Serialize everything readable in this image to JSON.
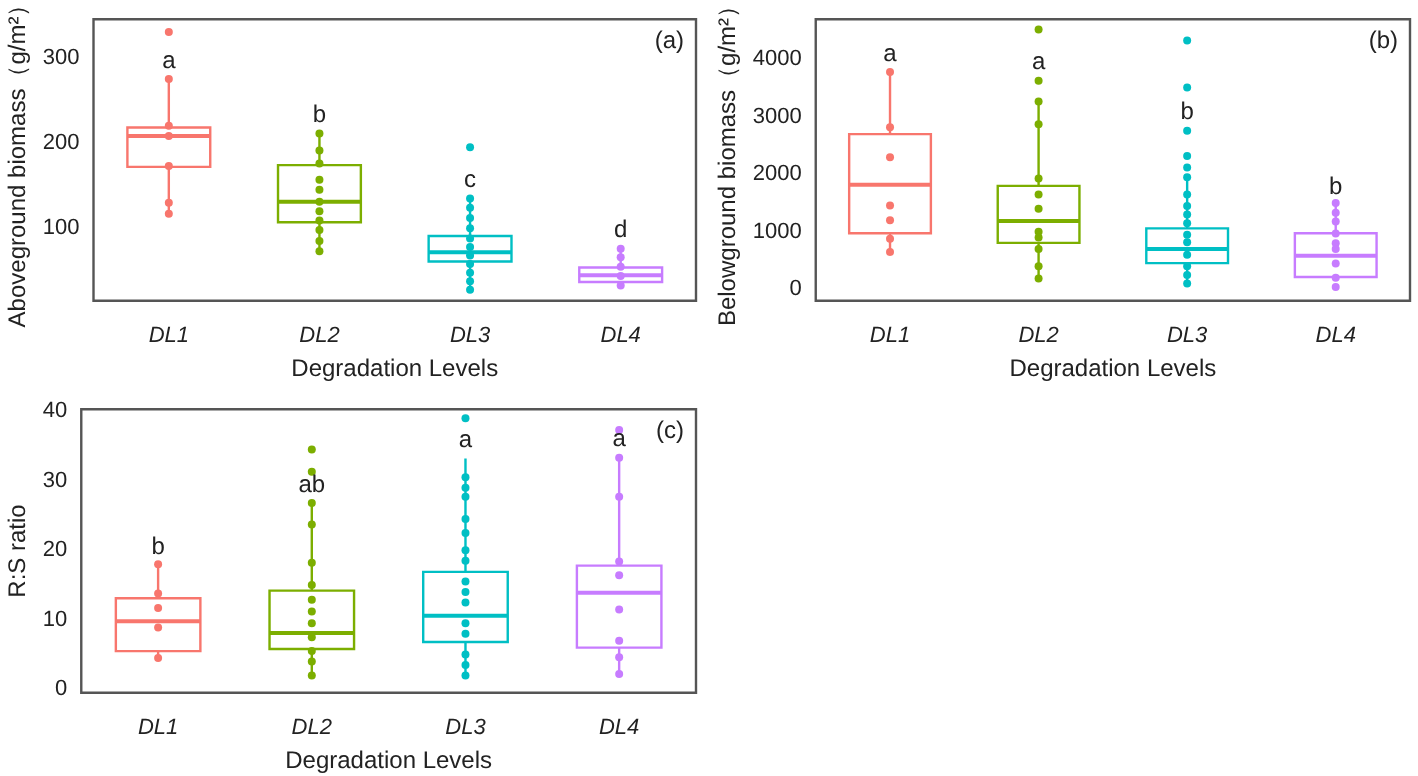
{
  "chart_data": [
    {
      "type": "box",
      "xlabel": "Degradation Levels",
      "ylabel": "Aboveground biomass（g/m²）",
      "categories": [
        "DL1",
        "DL2",
        "DL3",
        "DL4"
      ],
      "colors": [
        "#f8766d",
        "#7cae00",
        "#00bfc4",
        "#c77cff"
      ],
      "ylim": [
        15,
        345
      ],
      "yticks": [
        100,
        200,
        300
      ],
      "marker": "circle",
      "boxes": [
        {
          "low": 116,
          "q1": 172,
          "median": 208,
          "q3": 218,
          "high": 275
        },
        {
          "low": 73,
          "q1": 107,
          "median": 131,
          "q3": 174,
          "high": 211
        },
        {
          "low": 30,
          "q1": 61,
          "median": 72,
          "q3": 91,
          "high": 135
        },
        {
          "low": 37,
          "q1": 37,
          "median": 45,
          "q3": 54,
          "high": 76
        }
      ],
      "series": [
        {
          "type": "scatter",
          "color": "#f8766d",
          "x": [
            "DL1",
            "DL1",
            "DL1",
            "DL1",
            "DL1",
            "DL1",
            "DL1"
          ],
          "values": [
            330,
            275,
            220,
            208,
            173,
            130,
            117
          ]
        },
        {
          "type": "scatter",
          "color": "#7cae00",
          "x": [
            "DL2",
            "DL2",
            "DL2",
            "DL2",
            "DL2",
            "DL2",
            "DL2",
            "DL2",
            "DL2",
            "DL2",
            "DL2"
          ],
          "values": [
            211,
            191,
            176,
            157,
            145,
            131,
            120,
            109,
            98,
            85,
            73
          ]
        },
        {
          "type": "scatter",
          "color": "#00bfc4",
          "x": [
            "DL3",
            "DL3",
            "DL3",
            "DL3",
            "DL3",
            "DL3",
            "DL3",
            "DL3",
            "DL3",
            "DL3",
            "DL3",
            "DL3"
          ],
          "values": [
            195,
            135,
            124,
            112,
            100,
            88,
            78,
            68,
            58,
            48,
            38,
            28
          ]
        },
        {
          "type": "scatter",
          "color": "#c77cff",
          "x": [
            "DL4",
            "DL4",
            "DL4",
            "DL4",
            "DL4"
          ],
          "values": [
            76,
            66,
            55,
            44,
            33
          ]
        }
      ],
      "annotations": [
        "(a)",
        {
          "text": "a",
          "x": "DL1",
          "y": 275
        },
        {
          "text": "b",
          "x": "DL2",
          "y": 211
        },
        {
          "text": "c",
          "x": "DL3",
          "y": 135
        },
        {
          "text": "d",
          "x": "DL4",
          "y": 76
        }
      ]
    },
    {
      "type": "box",
      "xlabel": "Degradation Levels",
      "ylabel": "Belowground biomass（g/m²）",
      "categories": [
        "DL1",
        "DL2",
        "DL3",
        "DL4"
      ],
      "colors": [
        "#f8766d",
        "#7cae00",
        "#00bfc4",
        "#c77cff"
      ],
      "ylim": [
        -200,
        4700
      ],
      "yticks": [
        0,
        1000,
        2000,
        3000,
        4000
      ],
      "marker": "circle",
      "boxes": [
        {
          "low": 640,
          "q1": 975,
          "median": 1820,
          "q3": 2700,
          "high": 3775
        },
        {
          "low": 195,
          "q1": 808,
          "median": 1190,
          "q3": 1800,
          "high": 3250
        },
        {
          "low": 146,
          "q1": 456,
          "median": 700,
          "q3": 1060,
          "high": 1950
        },
        {
          "low": 213,
          "q1": 213,
          "median": 585,
          "q3": 975,
          "high": 1460
        }
      ],
      "series": [
        {
          "type": "scatter",
          "color": "#f8766d",
          "x": [
            "DL1",
            "DL1",
            "DL1",
            "DL1",
            "DL1",
            "DL1",
            "DL1"
          ],
          "values": [
            3780,
            2820,
            2300,
            1460,
            1200,
            880,
            650
          ]
        },
        {
          "type": "scatter",
          "color": "#7cae00",
          "x": [
            "DL2",
            "DL2",
            "DL2",
            "DL2",
            "DL2",
            "DL2",
            "DL2",
            "DL2",
            "DL2",
            "DL2",
            "DL2",
            "DL2"
          ],
          "values": [
            4520,
            3630,
            3270,
            2870,
            1930,
            1650,
            1400,
            1000,
            900,
            700,
            400,
            190
          ]
        },
        {
          "type": "scatter",
          "color": "#00bfc4",
          "x": [
            "DL3",
            "DL3",
            "DL3",
            "DL3",
            "DL3",
            "DL3",
            "DL3",
            "DL3",
            "DL3",
            "DL3",
            "DL3",
            "DL3",
            "DL3",
            "DL3",
            "DL3",
            "DL3"
          ],
          "values": [
            4330,
            3510,
            2760,
            2320,
            2120,
            1950,
            1650,
            1450,
            1300,
            1150,
            950,
            820,
            600,
            400,
            250,
            100
          ]
        },
        {
          "type": "scatter",
          "color": "#c77cff",
          "x": [
            "DL4",
            "DL4",
            "DL4",
            "DL4",
            "DL4",
            "DL4",
            "DL4",
            "DL4",
            "DL4"
          ],
          "values": [
            1500,
            1330,
            1180,
            970,
            800,
            700,
            450,
            200,
            40
          ]
        }
      ],
      "annotations": [
        "(b)",
        {
          "text": "a",
          "x": "DL1",
          "y": 3775
        },
        {
          "text": "a",
          "x": "DL2",
          "y": 3630
        },
        {
          "text": "b",
          "x": "DL3",
          "y": 2760
        },
        {
          "text": "b",
          "x": "DL4",
          "y": 1460
        }
      ]
    },
    {
      "type": "box",
      "xlabel": "Degradation Levels",
      "ylabel": "R:S ratio",
      "categories": [
        "DL1",
        "DL2",
        "DL3",
        "DL4"
      ],
      "colors": [
        "#f8766d",
        "#7cae00",
        "#00bfc4",
        "#c77cff"
      ],
      "ylim": [
        -0.5,
        40.3
      ],
      "yticks": [
        0,
        10,
        20,
        30,
        40
      ],
      "marker": "circle",
      "boxes": [
        {
          "low": 4.3,
          "q1": 5.5,
          "median": 9.8,
          "q3": 13.1,
          "high": 17.8
        },
        {
          "low": 2.1,
          "q1": 5.8,
          "median": 8.1,
          "q3": 14.2,
          "high": 26.7
        },
        {
          "low": 1.5,
          "q1": 6.8,
          "median": 10.6,
          "q3": 16.9,
          "high": 33.2
        },
        {
          "low": 2,
          "q1": 6,
          "median": 13.9,
          "q3": 17.8,
          "high": 33.2
        }
      ],
      "series": [
        {
          "type": "scatter",
          "color": "#f8766d",
          "x": [
            "DL1",
            "DL1",
            "DL1",
            "DL1",
            "DL1"
          ],
          "values": [
            18,
            13.8,
            11.7,
            8.9,
            4.5
          ]
        },
        {
          "type": "scatter",
          "color": "#7cae00",
          "x": [
            "DL2",
            "DL2",
            "DL2",
            "DL2",
            "DL2",
            "DL2",
            "DL2",
            "DL2",
            "DL2",
            "DL2",
            "DL2",
            "DL2",
            "DL2"
          ],
          "values": [
            34.5,
            31.3,
            26.8,
            23.7,
            18.2,
            15,
            12.9,
            11.2,
            9.5,
            7.5,
            5.5,
            4,
            2
          ]
        },
        {
          "type": "scatter",
          "color": "#00bfc4",
          "x": [
            "DL3",
            "DL3",
            "DL3",
            "DL3",
            "DL3",
            "DL3",
            "DL3",
            "DL3",
            "DL3",
            "DL3",
            "DL3",
            "DL3",
            "DL3",
            "DL3",
            "DL3",
            "DL3"
          ],
          "values": [
            39,
            30.5,
            29,
            27.7,
            24.5,
            22.5,
            20,
            18.5,
            15.5,
            14,
            12.5,
            9.5,
            8,
            5,
            3.5,
            2
          ]
        },
        {
          "type": "scatter",
          "color": "#c77cff",
          "x": [
            "DL4",
            "DL4",
            "DL4",
            "DL4",
            "DL4",
            "DL4",
            "DL4",
            "DL4",
            "DL4"
          ],
          "values": [
            37.3,
            33.3,
            27.7,
            18.4,
            16.4,
            11.5,
            7,
            4.6,
            2.2
          ]
        }
      ],
      "annotations": [
        "(c)",
        {
          "text": "b",
          "x": "DL1",
          "y": 17.8
        },
        {
          "text": "ab",
          "x": "DL2",
          "y": 26.7
        },
        {
          "text": "a",
          "x": "DL3",
          "y": 33.2
        },
        {
          "text": "a",
          "x": "DL4",
          "y": 33.3
        }
      ]
    }
  ]
}
